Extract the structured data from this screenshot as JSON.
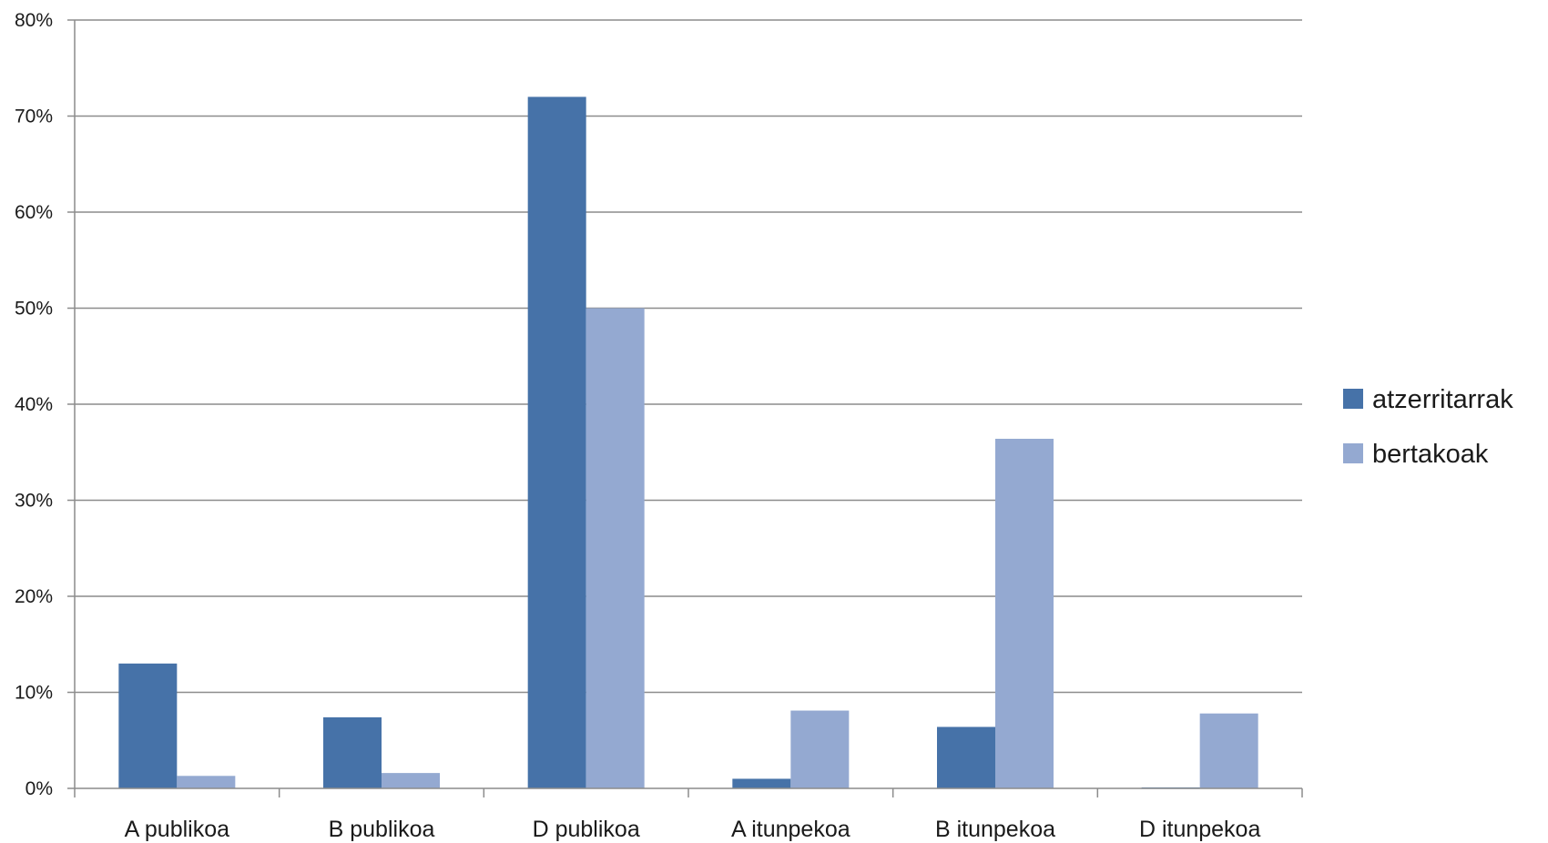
{
  "chart_data": {
    "type": "bar",
    "categories": [
      "A publikoa",
      "B publikoa",
      "D publikoa",
      "A itunpekoa",
      "B itunpekoa",
      "D itunpekoa"
    ],
    "series": [
      {
        "name": "atzerritarrak",
        "color": "#4672a8",
        "values": [
          13.0,
          7.4,
          72.0,
          1.0,
          6.4,
          0.1
        ]
      },
      {
        "name": "bertakoak",
        "color": "#94a9d1",
        "values": [
          1.3,
          1.6,
          50.0,
          8.1,
          36.4,
          7.8
        ]
      }
    ],
    "ylim": [
      0,
      80
    ],
    "yticks": [
      "0%",
      "10%",
      "20%",
      "30%",
      "40%",
      "50%",
      "60%",
      "70%",
      "80%"
    ],
    "grid": true,
    "legend_position": "right",
    "title": "",
    "xlabel": "",
    "ylabel": ""
  }
}
